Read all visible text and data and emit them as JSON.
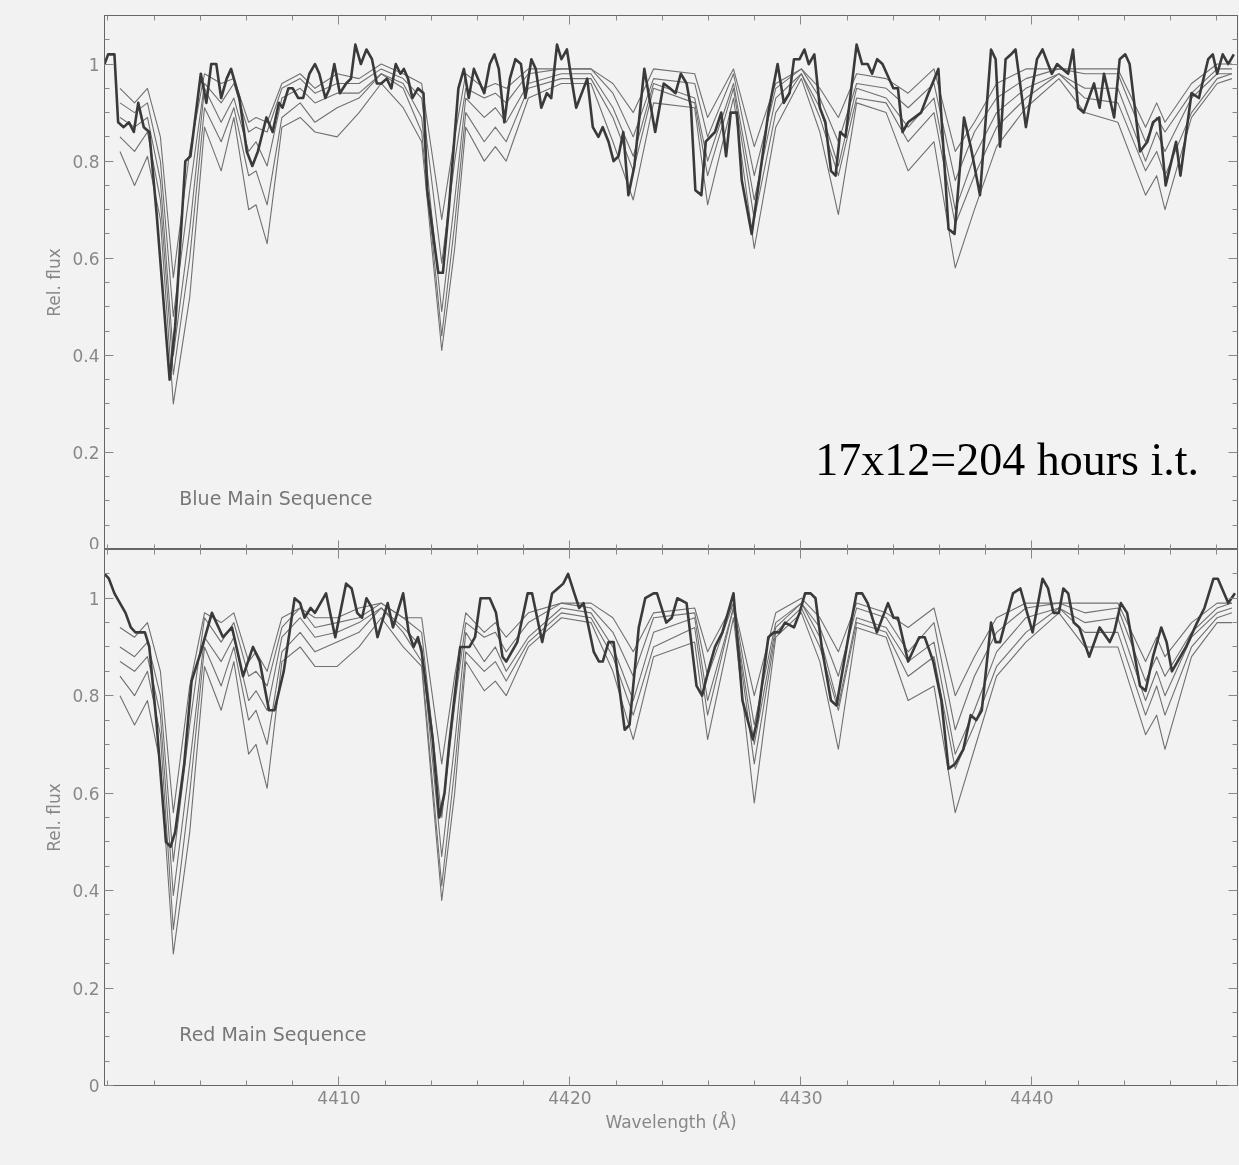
{
  "chart_data": [
    {
      "type": "line",
      "ylabel": "Rel. flux",
      "xlim": [
        4399.85,
        4448.9
      ],
      "xticks": [
        4410,
        4420,
        4430,
        4440
      ],
      "ylim": [
        0,
        1.1
      ],
      "yticks": [
        0,
        0.2,
        0.4,
        0.6,
        0.8,
        1
      ],
      "tick_labels": "y",
      "annotations": [
        "Blue Main Sequence",
        "17x12=204 hours i.t."
      ],
      "x": [
        4400.52,
        4401.15,
        4401.71,
        4402.27,
        4402.83,
        4403.54,
        4404.18,
        4404.9,
        4405.45,
        4406.09,
        4406.41,
        4406.89,
        4407.53,
        4408.32,
        4408.96,
        4409.92,
        4410.87,
        4411.83,
        4412.78,
        4413.58,
        4414.45,
        4415.01,
        4415.49,
        4416.29,
        4416.77,
        4417.24,
        4418.2,
        4419.63,
        4420.91,
        4421.86,
        4422.74,
        4423.62,
        4425.4,
        4425.96,
        4427.08,
        4427.98,
        4428.91,
        4430.02,
        4430.82,
        4431.62,
        4432.41,
        4433.69,
        4434.64,
        4435.76,
        4436.68,
        4437.51,
        4438.47,
        4439.74,
        4441.17,
        4442.29,
        4443.72,
        4444.92,
        4445.4,
        4445.76,
        4446.91,
        4448.02,
        4448.66
      ],
      "series": [
        {
          "color": "#707070",
          "values": [
            0.95,
            0.92,
            0.95,
            0.85,
            0.56,
            0.82,
            0.98,
            0.96,
            0.97,
            0.88,
            0.89,
            0.88,
            0.96,
            0.98,
            0.95,
            0.98,
            0.97,
            1.0,
            0.98,
            0.96,
            0.68,
            0.85,
            0.98,
            0.95,
            0.96,
            0.95,
            0.99,
            0.99,
            0.99,
            0.96,
            0.9,
            0.99,
            0.98,
            0.89,
            0.99,
            0.83,
            0.96,
            0.99,
            0.95,
            0.89,
            0.98,
            0.97,
            0.94,
            0.99,
            0.82,
            0.88,
            0.96,
            0.99,
            0.99,
            0.99,
            0.99,
            0.87,
            0.92,
            0.88,
            0.96,
            1.0,
            1.0
          ]
        },
        {
          "color": "#707070",
          "values": [
            0.92,
            0.9,
            0.92,
            0.8,
            0.48,
            0.74,
            0.96,
            0.92,
            0.96,
            0.86,
            0.87,
            0.86,
            0.95,
            0.97,
            0.94,
            0.96,
            0.96,
            0.99,
            0.97,
            0.93,
            0.59,
            0.8,
            0.95,
            0.93,
            0.94,
            0.92,
            0.98,
            0.99,
            0.99,
            0.94,
            0.85,
            0.97,
            0.96,
            0.85,
            0.98,
            0.77,
            0.95,
            0.99,
            0.93,
            0.84,
            0.96,
            0.95,
            0.91,
            0.96,
            0.76,
            0.86,
            0.93,
            0.97,
            0.99,
            0.98,
            0.98,
            0.84,
            0.89,
            0.86,
            0.94,
            0.99,
            0.99
          ]
        },
        {
          "color": "#707070",
          "values": [
            0.89,
            0.87,
            0.89,
            0.76,
            0.4,
            0.66,
            0.95,
            0.88,
            0.93,
            0.82,
            0.84,
            0.79,
            0.93,
            0.95,
            0.92,
            0.94,
            0.94,
            0.98,
            0.96,
            0.89,
            0.49,
            0.72,
            0.93,
            0.89,
            0.91,
            0.88,
            0.96,
            0.98,
            0.98,
            0.91,
            0.81,
            0.96,
            0.93,
            0.8,
            0.96,
            0.72,
            0.93,
            0.98,
            0.91,
            0.79,
            0.95,
            0.93,
            0.87,
            0.93,
            0.7,
            0.81,
            0.9,
            0.95,
            0.98,
            0.95,
            0.95,
            0.8,
            0.86,
            0.82,
            0.93,
            0.98,
            0.98
          ]
        },
        {
          "color": "#707070",
          "values": [
            0.85,
            0.82,
            0.86,
            0.72,
            0.36,
            0.6,
            0.91,
            0.84,
            0.91,
            0.77,
            0.78,
            0.71,
            0.89,
            0.92,
            0.88,
            0.91,
            0.93,
            0.98,
            0.95,
            0.86,
            0.44,
            0.67,
            0.9,
            0.84,
            0.87,
            0.84,
            0.95,
            0.97,
            0.97,
            0.89,
            0.78,
            0.95,
            0.92,
            0.77,
            0.95,
            0.68,
            0.9,
            0.98,
            0.89,
            0.77,
            0.93,
            0.92,
            0.84,
            0.9,
            0.67,
            0.77,
            0.87,
            0.93,
            0.98,
            0.93,
            0.92,
            0.78,
            0.82,
            0.77,
            0.9,
            0.97,
            0.98
          ]
        },
        {
          "color": "#707070",
          "values": [
            0.82,
            0.75,
            0.81,
            0.68,
            0.3,
            0.52,
            0.87,
            0.78,
            0.89,
            0.7,
            0.71,
            0.63,
            0.87,
            0.89,
            0.86,
            0.85,
            0.9,
            0.96,
            0.91,
            0.84,
            0.41,
            0.62,
            0.87,
            0.8,
            0.83,
            0.8,
            0.93,
            0.96,
            0.96,
            0.84,
            0.72,
            0.92,
            0.91,
            0.71,
            0.93,
            0.62,
            0.87,
            0.97,
            0.86,
            0.69,
            0.92,
            0.9,
            0.78,
            0.84,
            0.58,
            0.7,
            0.83,
            0.91,
            0.97,
            0.9,
            0.88,
            0.73,
            0.77,
            0.7,
            0.89,
            0.96,
            0.97
          ]
        },
        {
          "color": "#3a3a3a",
          "x": [
            4399.85,
            4400.01,
            4400.28,
            4400.44,
            4400.68,
            4400.91,
            4401.12,
            4401.31,
            4401.55,
            4401.79,
            4402.11,
            4402.67,
            4402.91,
            4403.35,
            4403.57,
            4404.02,
            4404.26,
            4404.47,
            4404.69,
            4404.9,
            4405.14,
            4405.33,
            4405.69,
            4406.01,
            4406.25,
            4406.49,
            4406.86,
            4407.13,
            4407.4,
            4407.56,
            4407.81,
            4408.0,
            4408.24,
            4408.45,
            4408.72,
            4408.96,
            4409.15,
            4409.41,
            4409.6,
            4409.8,
            4410.04,
            4410.31,
            4410.52,
            4410.71,
            4410.95,
            4411.19,
            4411.43,
            4411.64,
            4411.83,
            4412.07,
            4412.27,
            4412.46,
            4412.66,
            4412.81,
            4412.99,
            4413.18,
            4413.42,
            4413.66,
            4413.82,
            4414.3,
            4414.5,
            4414.77,
            4415.17,
            4415.41,
            4415.62,
            4415.84,
            4416.29,
            4416.53,
            4416.73,
            4416.92,
            4417.16,
            4417.4,
            4417.64,
            4417.88,
            4418.07,
            4418.33,
            4418.52,
            4418.76,
            4419.0,
            4419.19,
            4419.44,
            4419.63,
            4419.87,
            4420.03,
            4420.27,
            4420.75,
            4420.99,
            4421.23,
            4421.42,
            4421.67,
            4421.89,
            4422.1,
            4422.31,
            4422.53,
            4422.79,
            4423.22,
            4423.69,
            4424.06,
            4424.33,
            4424.57,
            4424.8,
            4425.05,
            4425.24,
            4425.43,
            4425.69,
            4425.88,
            4426.28,
            4426.55,
            4426.76,
            4426.96,
            4427.23,
            4427.44,
            4427.87,
            4428.19,
            4428.59,
            4428.99,
            4429.26,
            4429.51,
            4429.7,
            4429.94,
            4430.15,
            4430.34,
            4430.58,
            4430.82,
            4431.06,
            4431.3,
            4431.5,
            4431.7,
            4431.93,
            4432.41,
            4432.65,
            4432.89,
            4433.08,
            4433.3,
            4433.53,
            4434.0,
            4434.2,
            4434.4,
            4434.64,
            4435.2,
            4435.52,
            4435.95,
            4436.39,
            4436.65,
            4437.06,
            4437.35,
            4437.75,
            4438.23,
            4438.43,
            4438.62,
            4438.86,
            4439.1,
            4439.29,
            4439.74,
            4440.22,
            4440.46,
            4440.86,
            4441.09,
            4441.33,
            4441.57,
            4441.78,
            4442.0,
            4442.24,
            4442.69,
            4442.93,
            4443.12,
            4443.56,
            4443.8,
            4444.04,
            4444.23,
            4444.68,
            4445.0,
            4445.24,
            4445.51,
            4445.79,
            4446.24,
            4446.43,
            4446.91,
            4447.23,
            4447.63,
            4447.83,
            4448.02,
            4448.26,
            4448.5,
            4448.74
          ],
          "values": [
            1.0,
            1.02,
            1.02,
            0.88,
            0.87,
            0.88,
            0.86,
            0.92,
            0.87,
            0.86,
            0.69,
            0.35,
            0.46,
            0.8,
            0.81,
            0.98,
            0.92,
            1.0,
            1.0,
            0.93,
            0.97,
            0.99,
            0.93,
            0.82,
            0.79,
            0.82,
            0.89,
            0.86,
            0.92,
            0.91,
            0.95,
            0.95,
            0.93,
            0.93,
            0.98,
            1.0,
            0.98,
            0.93,
            0.95,
            1.0,
            0.94,
            0.96,
            0.97,
            1.04,
            1.0,
            1.03,
            1.01,
            0.96,
            0.96,
            0.97,
            0.95,
            1.0,
            0.98,
            0.99,
            0.97,
            0.93,
            0.95,
            0.94,
            0.74,
            0.57,
            0.57,
            0.71,
            0.95,
            0.99,
            0.93,
            0.99,
            0.94,
            1.0,
            1.02,
            0.99,
            0.88,
            0.97,
            1.01,
            1.0,
            0.93,
            1.01,
            0.99,
            0.91,
            0.94,
            0.93,
            1.04,
            1.01,
            1.03,
            0.98,
            0.91,
            0.97,
            0.87,
            0.85,
            0.87,
            0.84,
            0.8,
            0.81,
            0.86,
            0.73,
            0.79,
            0.99,
            0.86,
            0.96,
            0.95,
            0.94,
            0.98,
            0.96,
            0.91,
            0.74,
            0.73,
            0.84,
            0.86,
            0.9,
            0.81,
            0.9,
            0.9,
            0.76,
            0.65,
            0.76,
            0.9,
            1.0,
            0.92,
            0.94,
            1.01,
            1.01,
            1.03,
            1.0,
            1.02,
            0.91,
            0.88,
            0.78,
            0.77,
            0.86,
            0.85,
            1.04,
            1.0,
            1.0,
            0.98,
            1.01,
            1.0,
            0.95,
            0.95,
            0.86,
            0.88,
            0.9,
            0.94,
            0.99,
            0.66,
            0.65,
            0.89,
            0.83,
            0.73,
            1.03,
            1.01,
            0.83,
            1.01,
            1.02,
            1.03,
            0.87,
            1.01,
            1.03,
            0.98,
            1.0,
            0.99,
            0.98,
            1.03,
            0.91,
            0.9,
            0.96,
            0.91,
            0.98,
            0.89,
            1.01,
            1.02,
            1.0,
            0.82,
            0.84,
            0.88,
            0.89,
            0.75,
            0.84,
            0.77,
            0.94,
            0.93,
            1.01,
            1.02,
            0.98,
            1.02,
            1.0,
            1.02
          ]
        }
      ]
    },
    {
      "type": "line",
      "xlabel": "Wavelength (Å)",
      "ylabel": "Rel. flux",
      "xlim": [
        4399.85,
        4448.9
      ],
      "xticks": [
        4410,
        4420,
        4430,
        4440
      ],
      "ylim": [
        0,
        1.1
      ],
      "yticks": [
        0,
        0.2,
        0.4,
        0.6,
        0.8,
        1
      ],
      "annotations": [
        "Red Main Sequence"
      ],
      "x": [
        4400.52,
        4401.15,
        4401.71,
        4402.27,
        4402.83,
        4403.54,
        4404.18,
        4404.9,
        4405.45,
        4406.09,
        4406.41,
        4406.89,
        4407.53,
        4408.32,
        4408.96,
        4409.92,
        4410.87,
        4411.83,
        4412.78,
        4413.58,
        4414.45,
        4415.01,
        4415.49,
        4416.29,
        4416.77,
        4417.24,
        4418.2,
        4419.63,
        4420.91,
        4421.86,
        4422.74,
        4423.62,
        4425.4,
        4425.96,
        4427.08,
        4427.98,
        4428.91,
        4430.02,
        4430.82,
        4431.62,
        4432.41,
        4433.69,
        4434.64,
        4435.76,
        4436.68,
        4437.51,
        4438.47,
        4439.74,
        4441.17,
        4442.29,
        4443.72,
        4444.92,
        4445.4,
        4445.76,
        4446.91,
        4448.02,
        4448.66
      ],
      "series": [
        {
          "color": "#707070",
          "values": [
            0.94,
            0.92,
            0.95,
            0.85,
            0.56,
            0.82,
            0.97,
            0.95,
            0.97,
            0.87,
            0.89,
            0.85,
            0.96,
            0.98,
            0.96,
            0.96,
            0.98,
            0.99,
            0.96,
            0.96,
            0.66,
            0.84,
            0.97,
            0.93,
            0.95,
            0.92,
            0.97,
            0.99,
            0.99,
            0.96,
            0.89,
            0.97,
            0.98,
            0.89,
            0.99,
            0.8,
            0.97,
            1.0,
            0.96,
            0.89,
            0.99,
            0.97,
            0.94,
            0.98,
            0.8,
            0.88,
            0.96,
            0.99,
            0.99,
            0.99,
            0.99,
            0.87,
            0.92,
            0.88,
            0.95,
            0.99,
            0.99
          ]
        },
        {
          "color": "#707070",
          "values": [
            0.9,
            0.88,
            0.91,
            0.8,
            0.46,
            0.74,
            0.96,
            0.91,
            0.95,
            0.84,
            0.85,
            0.82,
            0.94,
            0.98,
            0.94,
            0.95,
            0.96,
            0.99,
            0.96,
            0.93,
            0.55,
            0.78,
            0.95,
            0.92,
            0.93,
            0.89,
            0.95,
            0.99,
            0.98,
            0.93,
            0.84,
            0.96,
            0.97,
            0.84,
            0.99,
            0.74,
            0.95,
            0.99,
            0.94,
            0.84,
            0.98,
            0.96,
            0.89,
            0.95,
            0.73,
            0.84,
            0.93,
            0.98,
            0.99,
            0.97,
            0.98,
            0.83,
            0.88,
            0.84,
            0.93,
            0.98,
            0.99
          ]
        },
        {
          "color": "#707070",
          "values": [
            0.87,
            0.85,
            0.88,
            0.76,
            0.39,
            0.66,
            0.92,
            0.87,
            0.92,
            0.79,
            0.81,
            0.77,
            0.92,
            0.96,
            0.92,
            0.93,
            0.95,
            0.98,
            0.94,
            0.9,
            0.47,
            0.7,
            0.93,
            0.87,
            0.9,
            0.85,
            0.92,
            0.98,
            0.97,
            0.9,
            0.79,
            0.93,
            0.96,
            0.79,
            0.98,
            0.7,
            0.94,
            0.99,
            0.92,
            0.78,
            0.96,
            0.94,
            0.87,
            0.91,
            0.68,
            0.77,
            0.89,
            0.96,
            0.98,
            0.95,
            0.96,
            0.79,
            0.85,
            0.8,
            0.92,
            0.97,
            0.98
          ]
        },
        {
          "color": "#707070",
          "values": [
            0.84,
            0.8,
            0.85,
            0.72,
            0.32,
            0.6,
            0.9,
            0.82,
            0.9,
            0.75,
            0.77,
            0.7,
            0.89,
            0.93,
            0.89,
            0.91,
            0.93,
            0.98,
            0.93,
            0.87,
            0.41,
            0.65,
            0.89,
            0.85,
            0.87,
            0.83,
            0.91,
            0.97,
            0.96,
            0.88,
            0.76,
            0.9,
            0.94,
            0.76,
            0.98,
            0.66,
            0.93,
            0.98,
            0.9,
            0.77,
            0.95,
            0.93,
            0.84,
            0.88,
            0.65,
            0.74,
            0.86,
            0.93,
            0.98,
            0.93,
            0.93,
            0.76,
            0.82,
            0.76,
            0.9,
            0.96,
            0.97
          ]
        },
        {
          "color": "#707070",
          "values": [
            0.8,
            0.74,
            0.79,
            0.66,
            0.27,
            0.52,
            0.86,
            0.77,
            0.87,
            0.68,
            0.7,
            0.61,
            0.87,
            0.9,
            0.86,
            0.86,
            0.9,
            0.96,
            0.9,
            0.86,
            0.38,
            0.6,
            0.87,
            0.81,
            0.83,
            0.8,
            0.9,
            0.96,
            0.95,
            0.85,
            0.71,
            0.88,
            0.91,
            0.71,
            0.96,
            0.58,
            0.92,
            0.97,
            0.87,
            0.69,
            0.94,
            0.92,
            0.79,
            0.82,
            0.56,
            0.69,
            0.84,
            0.91,
            0.97,
            0.9,
            0.9,
            0.72,
            0.76,
            0.69,
            0.88,
            0.95,
            0.95
          ]
        },
        {
          "color": "#3a3a3a",
          "x": [
            4399.85,
            4400.04,
            4400.28,
            4400.52,
            4400.76,
            4400.99,
            4401.19,
            4401.39,
            4401.6,
            4401.79,
            4402.11,
            4402.51,
            4402.71,
            4402.91,
            4403.3,
            4403.62,
            4404.02,
            4404.5,
            4404.98,
            4405.37,
            4405.85,
            4406.28,
            4406.57,
            4406.97,
            4407.21,
            4407.61,
            4408.08,
            4408.32,
            4408.51,
            4408.77,
            4408.96,
            4409.44,
            4409.84,
            4410.31,
            4410.55,
            4410.79,
            4411.0,
            4411.19,
            4411.43,
            4411.67,
            4412.11,
            4412.34,
            4412.78,
            4413.02,
            4413.23,
            4413.42,
            4413.58,
            4414.06,
            4414.34,
            4414.57,
            4414.77,
            4415.25,
            4415.65,
            4415.89,
            4416.13,
            4416.53,
            4416.8,
            4417.08,
            4417.24,
            4417.72,
            4418.17,
            4418.36,
            4418.8,
            4419.23,
            4419.47,
            4419.71,
            4419.92,
            4420.19,
            4420.4,
            4420.59,
            4421.03,
            4421.26,
            4421.42,
            4421.67,
            4421.89,
            4422.37,
            4422.58,
            4422.98,
            4423.26,
            4423.62,
            4423.77,
            4424.17,
            4424.41,
            4424.65,
            4425.05,
            4425.48,
            4425.72,
            4426.04,
            4426.28,
            4426.6,
            4427.08,
            4427.47,
            4427.92,
            4428.11,
            4428.59,
            4428.83,
            4429.07,
            4429.31,
            4429.7,
            4429.94,
            4430.18,
            4430.42,
            4430.63,
            4430.9,
            4431.3,
            4431.54,
            4432.09,
            4432.41,
            4432.65,
            4432.89,
            4433.29,
            4433.77,
            4434.01,
            4434.2,
            4434.64,
            4435.12,
            4435.36,
            4435.73,
            4436.08,
            4436.39,
            4436.68,
            4437.03,
            4437.35,
            4437.59,
            4437.83,
            4438.23,
            4438.43,
            4438.62,
            4439.18,
            4439.5,
            4440.03,
            4440.46,
            4440.7,
            4440.93,
            4441.17,
            4441.36,
            4441.57,
            4441.81,
            4442.05,
            4442.48,
            4442.93,
            4443.37,
            4443.56,
            4443.85,
            4444.12,
            4444.68,
            4444.92,
            4445.24,
            4445.6,
            4445.83,
            4446.06,
            4446.67,
            4447.15,
            4447.47,
            4447.86,
            4448.05,
            4448.5,
            4448.79
          ],
          "values": [
            1.05,
            1.04,
            1.01,
            0.99,
            0.97,
            0.94,
            0.93,
            0.93,
            0.93,
            0.9,
            0.74,
            0.5,
            0.49,
            0.52,
            0.66,
            0.83,
            0.89,
            0.97,
            0.92,
            0.94,
            0.84,
            0.9,
            0.87,
            0.77,
            0.77,
            0.85,
            1.0,
            0.99,
            0.96,
            0.98,
            0.97,
            1.01,
            0.92,
            1.03,
            1.02,
            0.97,
            0.96,
            1.0,
            0.98,
            0.92,
            0.99,
            0.94,
            1.01,
            0.93,
            0.9,
            0.92,
            0.89,
            0.71,
            0.55,
            0.6,
            0.7,
            0.9,
            0.9,
            0.92,
            1.0,
            1.0,
            0.97,
            0.88,
            0.87,
            0.91,
            1.01,
            1.01,
            0.91,
            1.01,
            1.02,
            1.03,
            1.05,
            1.01,
            0.98,
            0.99,
            0.89,
            0.87,
            0.87,
            0.91,
            0.91,
            0.73,
            0.74,
            0.94,
            1.0,
            1.01,
            1.01,
            0.95,
            0.96,
            1.0,
            0.99,
            0.82,
            0.8,
            0.86,
            0.9,
            0.93,
            1.01,
            0.79,
            0.71,
            0.75,
            0.92,
            0.93,
            0.93,
            0.95,
            0.94,
            0.97,
            1.01,
            1.01,
            1.0,
            0.9,
            0.79,
            0.78,
            0.93,
            1.01,
            1.01,
            0.99,
            0.93,
            0.99,
            0.96,
            0.96,
            0.87,
            0.92,
            0.92,
            0.87,
            0.79,
            0.65,
            0.66,
            0.69,
            0.76,
            0.75,
            0.77,
            0.95,
            0.91,
            0.91,
            1.01,
            1.02,
            0.93,
            1.04,
            1.02,
            0.97,
            0.97,
            1.02,
            1.01,
            0.95,
            0.94,
            0.88,
            0.94,
            0.91,
            0.93,
            0.99,
            0.97,
            0.82,
            0.81,
            0.88,
            0.94,
            0.91,
            0.85,
            0.9,
            0.95,
            0.98,
            1.04,
            1.04,
            0.99,
            1.01
          ]
        }
      ]
    }
  ]
}
